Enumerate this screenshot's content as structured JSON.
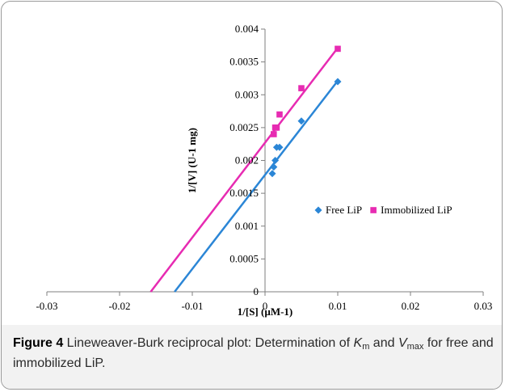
{
  "chart_data": {
    "type": "scatter",
    "xlabel": "1/[S] (µM-1)",
    "ylabel": "1/[V] (U-1 mg)",
    "xlim": [
      -0.03,
      0.03
    ],
    "ylim": [
      0,
      0.004
    ],
    "x_ticks": [
      -0.03,
      -0.02,
      -0.01,
      0,
      0.01,
      0.02,
      0.03
    ],
    "y_ticks": [
      0,
      0.0005,
      0.001,
      0.0015,
      0.002,
      0.0025,
      0.003,
      0.0035,
      0.004
    ],
    "x_tick_labels": [
      "-0.03",
      "-0.02",
      "-0.01",
      "0",
      "0.01",
      "0.02",
      "0.03"
    ],
    "y_tick_labels": [
      "0",
      "0.0005",
      "0.001",
      "0.0015",
      "0.002",
      "0.0025",
      "0.003",
      "0.0035",
      "0.004"
    ],
    "grid": false,
    "legend_position": "right-middle",
    "series": [
      {
        "name": "Free LiP",
        "color": "#2b86d6",
        "marker": "diamond",
        "points": [
          [
            0.001,
            0.0018
          ],
          [
            0.0012,
            0.0019
          ],
          [
            0.0014,
            0.002
          ],
          [
            0.0016,
            0.0022
          ],
          [
            0.002,
            0.0022
          ],
          [
            0.005,
            0.0026
          ],
          [
            0.01,
            0.0032
          ]
        ],
        "trendline": {
          "slope": 0.1432,
          "intercept": 0.00178
        }
      },
      {
        "name": "Immobilized LiP",
        "color": "#e72bb2",
        "marker": "square",
        "points": [
          [
            0.0012,
            0.0024
          ],
          [
            0.0014,
            0.0025
          ],
          [
            0.0016,
            0.0025
          ],
          [
            0.002,
            0.0027
          ],
          [
            0.005,
            0.0031
          ],
          [
            0.01,
            0.0037
          ]
        ],
        "trendline": {
          "slope": 0.1444,
          "intercept": 0.00227
        }
      }
    ]
  },
  "caption": {
    "label": "Figure 4",
    "text_part1": " Lineweaver-Burk reciprocal plot: Determination of ",
    "km_symbol": "K",
    "km_sub": "m",
    "text_part2": " and ",
    "vmax_symbol": "V",
    "vmax_sub": "max",
    "text_part3": " for free and immobilized LiP."
  }
}
